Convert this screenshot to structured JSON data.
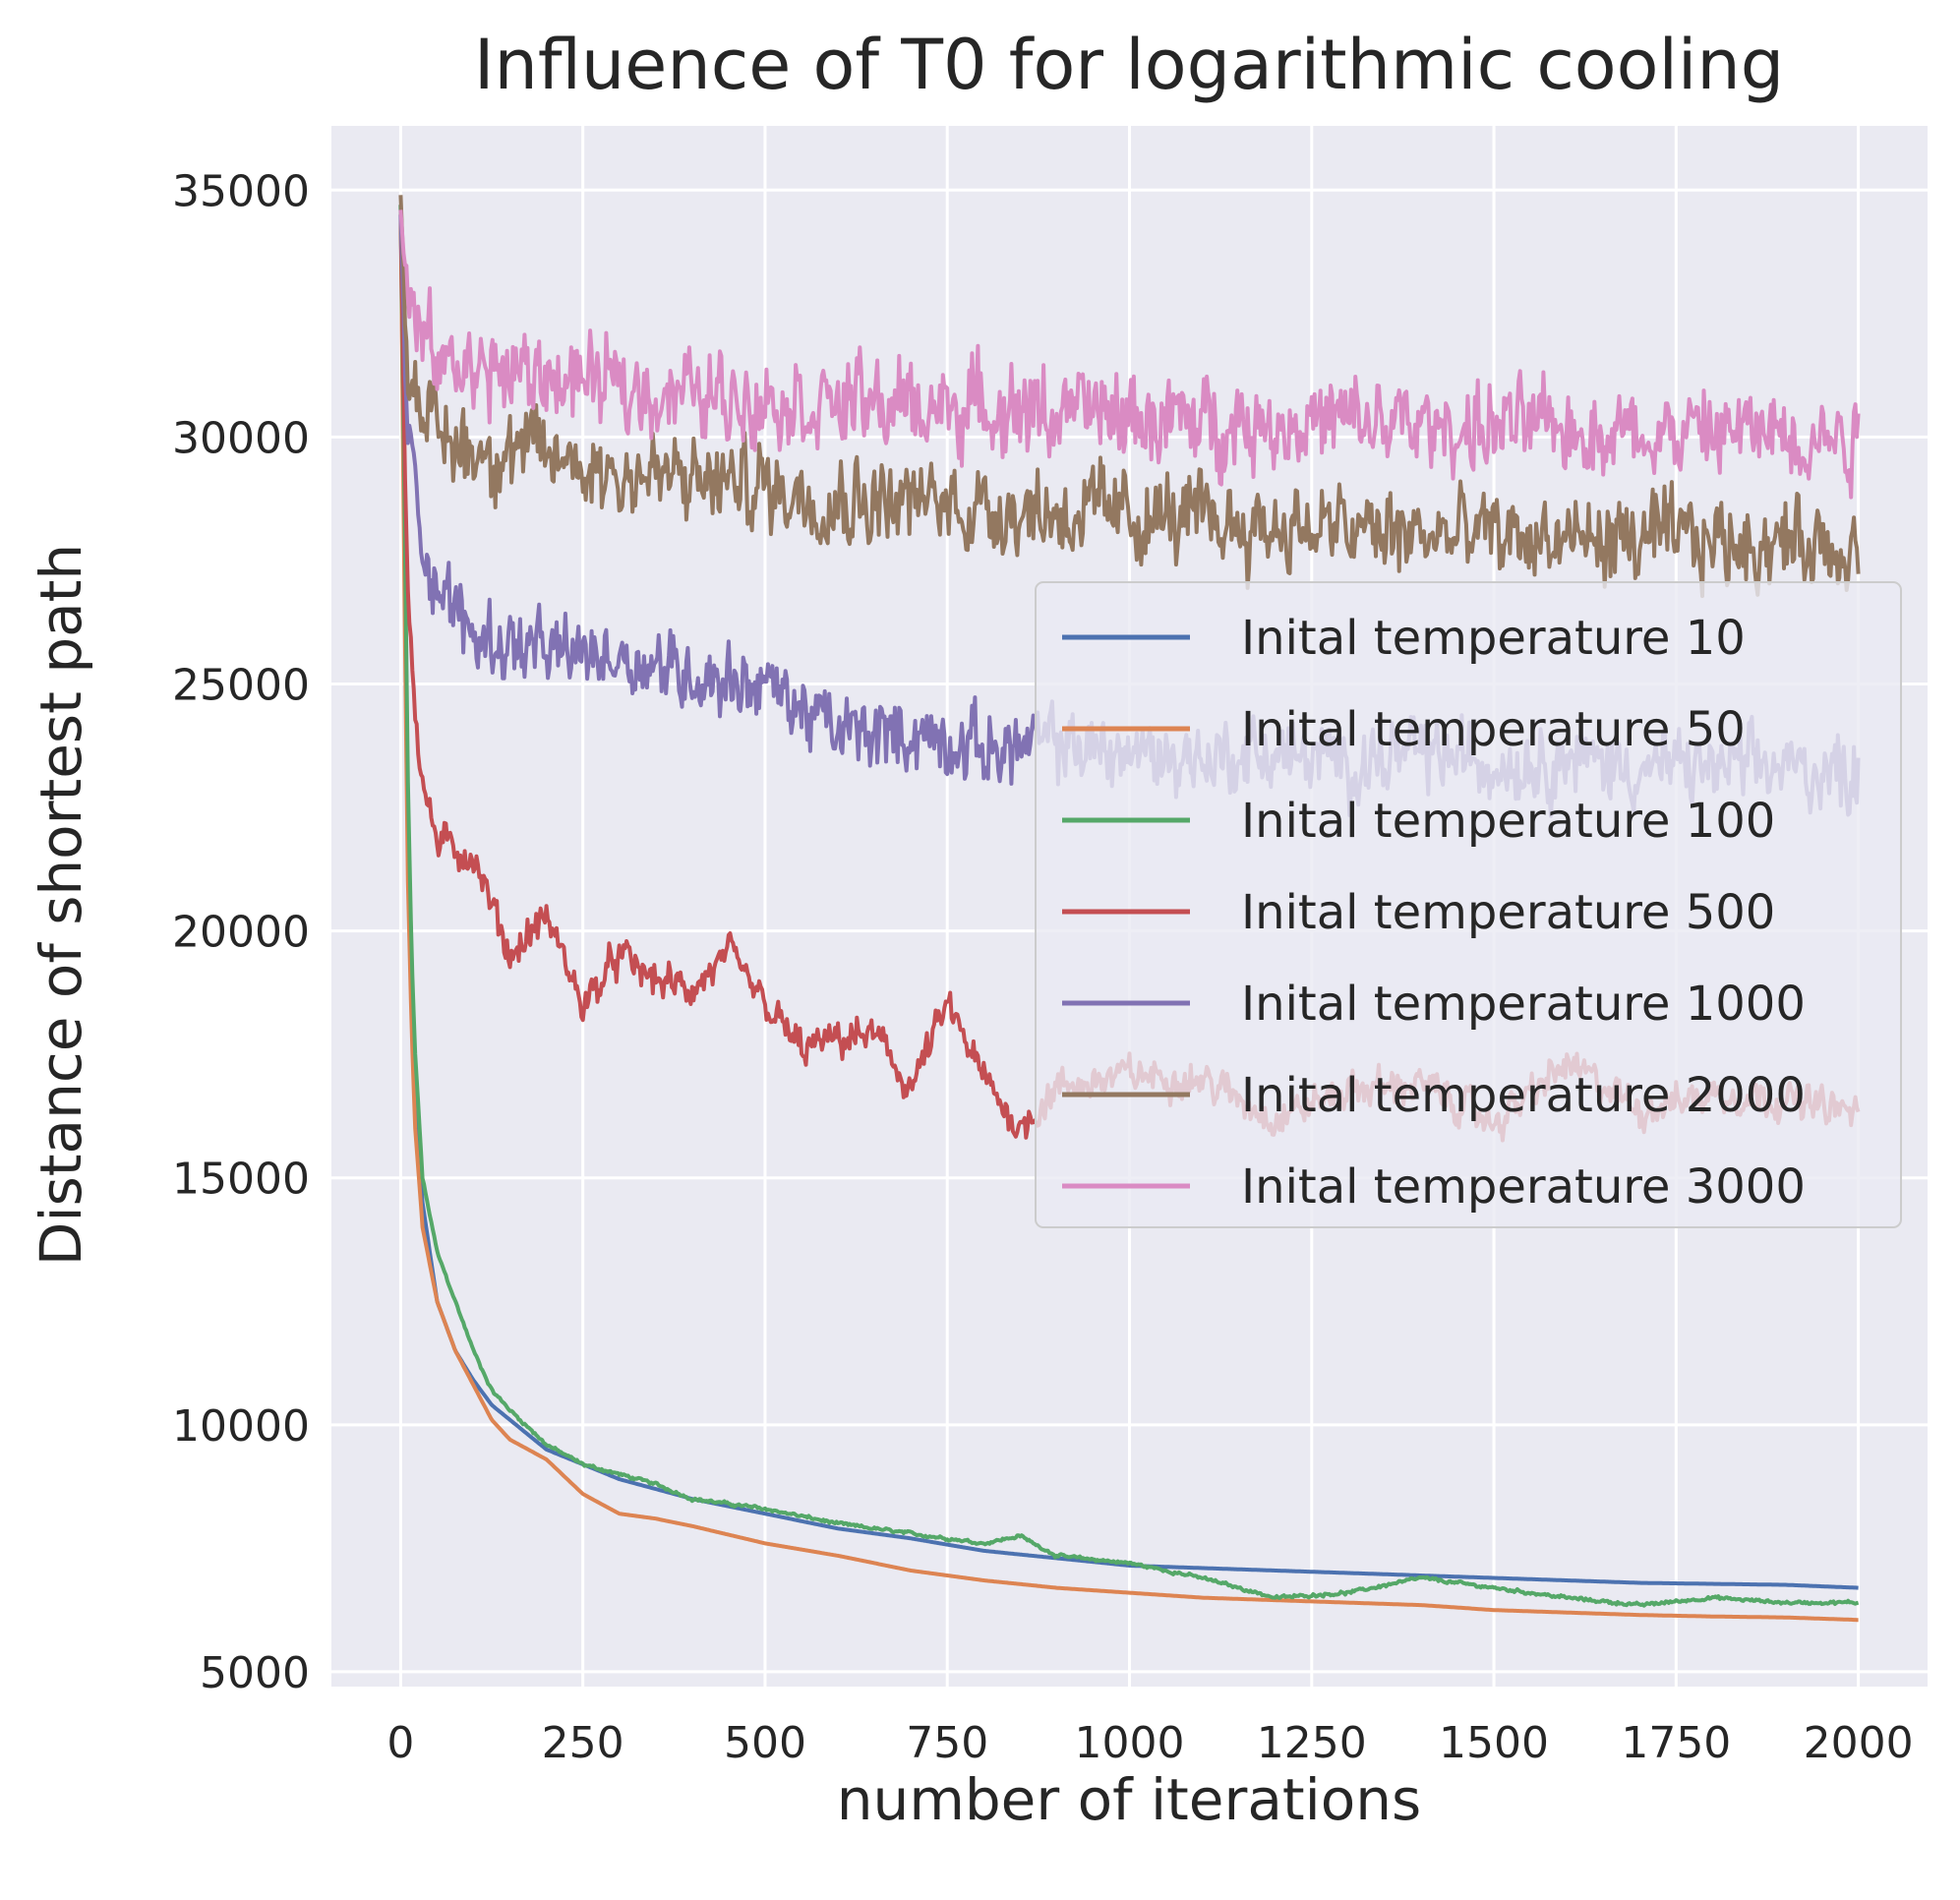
{
  "chart_data": {
    "type": "line",
    "title": "Influence of T0 for logarithmic cooling",
    "xlabel": "number of iterations",
    "ylabel": "Distance of shortest path",
    "xlim": [
      -95,
      2095
    ],
    "ylim": [
      4700,
      36300
    ],
    "grid": true,
    "legend_position": "center-right",
    "x_ticks": [
      0,
      250,
      500,
      750,
      1000,
      1250,
      1500,
      1750,
      2000
    ],
    "y_ticks": [
      5000,
      10000,
      15000,
      20000,
      25000,
      30000,
      35000
    ],
    "x_tick_labels": [
      "0",
      "250",
      "500",
      "750",
      "1000",
      "1250",
      "1500",
      "1750",
      "2000"
    ],
    "y_tick_labels": [
      "5000",
      "10000",
      "15000",
      "20000",
      "25000",
      "30000",
      "35000"
    ],
    "colors": {
      "background": "#eaeaf2",
      "grid": "#ffffff",
      "text": "#262626"
    },
    "series": [
      {
        "name": "Inital temperature 10",
        "color": "#4c72b0",
        "noise": 0,
        "points": [
          [
            0,
            34700
          ],
          [
            5,
            28000
          ],
          [
            10,
            22000
          ],
          [
            15,
            19000
          ],
          [
            20,
            16500
          ],
          [
            30,
            14500
          ],
          [
            50,
            12500
          ],
          [
            75,
            11500
          ],
          [
            100,
            10900
          ],
          [
            125,
            10400
          ],
          [
            150,
            10100
          ],
          [
            200,
            9500
          ],
          [
            250,
            9200
          ],
          [
            300,
            8900
          ],
          [
            350,
            8700
          ],
          [
            400,
            8500
          ],
          [
            500,
            8200
          ],
          [
            600,
            7900
          ],
          [
            700,
            7700
          ],
          [
            800,
            7450
          ],
          [
            900,
            7300
          ],
          [
            1000,
            7150
          ],
          [
            1100,
            7100
          ],
          [
            1200,
            7050
          ],
          [
            1300,
            7000
          ],
          [
            1400,
            6950
          ],
          [
            1500,
            6900
          ],
          [
            1600,
            6850
          ],
          [
            1700,
            6800
          ],
          [
            1800,
            6780
          ],
          [
            1900,
            6760
          ],
          [
            2000,
            6700
          ]
        ]
      },
      {
        "name": "Inital temperature 50",
        "color": "#dd8452",
        "noise": 0,
        "points": [
          [
            0,
            34700
          ],
          [
            5,
            27000
          ],
          [
            10,
            21000
          ],
          [
            15,
            18000
          ],
          [
            20,
            16000
          ],
          [
            30,
            14000
          ],
          [
            50,
            12500
          ],
          [
            75,
            11500
          ],
          [
            100,
            10800
          ],
          [
            125,
            10100
          ],
          [
            150,
            9700
          ],
          [
            200,
            9300
          ],
          [
            250,
            8600
          ],
          [
            300,
            8200
          ],
          [
            350,
            8100
          ],
          [
            400,
            7950
          ],
          [
            500,
            7600
          ],
          [
            600,
            7350
          ],
          [
            700,
            7050
          ],
          [
            800,
            6850
          ],
          [
            900,
            6700
          ],
          [
            1000,
            6600
          ],
          [
            1100,
            6500
          ],
          [
            1200,
            6450
          ],
          [
            1300,
            6400
          ],
          [
            1400,
            6350
          ],
          [
            1500,
            6250
          ],
          [
            1600,
            6200
          ],
          [
            1700,
            6150
          ],
          [
            1800,
            6120
          ],
          [
            1900,
            6100
          ],
          [
            2000,
            6050
          ]
        ]
      },
      {
        "name": "Inital temperature 100",
        "color": "#55a868",
        "noise": 40,
        "points": [
          [
            0,
            34700
          ],
          [
            5,
            29000
          ],
          [
            10,
            23000
          ],
          [
            15,
            19500
          ],
          [
            20,
            17500
          ],
          [
            30,
            15000
          ],
          [
            50,
            13500
          ],
          [
            75,
            12500
          ],
          [
            100,
            11500
          ],
          [
            125,
            10700
          ],
          [
            150,
            10300
          ],
          [
            200,
            9600
          ],
          [
            250,
            9200
          ],
          [
            300,
            9000
          ],
          [
            350,
            8800
          ],
          [
            400,
            8500
          ],
          [
            500,
            8300
          ],
          [
            600,
            8000
          ],
          [
            700,
            7800
          ],
          [
            800,
            7600
          ],
          [
            850,
            7750
          ],
          [
            900,
            7350
          ],
          [
            1000,
            7200
          ],
          [
            1100,
            6900
          ],
          [
            1200,
            6500
          ],
          [
            1300,
            6600
          ],
          [
            1400,
            6900
          ],
          [
            1500,
            6700
          ],
          [
            1600,
            6500
          ],
          [
            1700,
            6350
          ],
          [
            1800,
            6500
          ],
          [
            1900,
            6400
          ],
          [
            2000,
            6400
          ]
        ]
      },
      {
        "name": "Inital temperature 500",
        "color": "#c44e52",
        "noise": 450,
        "points": [
          [
            0,
            34500
          ],
          [
            5,
            30000
          ],
          [
            10,
            27000
          ],
          [
            20,
            24500
          ],
          [
            30,
            23000
          ],
          [
            50,
            21800
          ],
          [
            100,
            21500
          ],
          [
            150,
            19500
          ],
          [
            200,
            20300
          ],
          [
            250,
            18500
          ],
          [
            300,
            19500
          ],
          [
            350,
            19000
          ],
          [
            400,
            18800
          ],
          [
            450,
            19500
          ],
          [
            500,
            18500
          ],
          [
            550,
            17600
          ],
          [
            600,
            17800
          ],
          [
            650,
            17900
          ],
          [
            700,
            16800
          ],
          [
            750,
            18500
          ],
          [
            800,
            17000
          ],
          [
            850,
            16000
          ],
          [
            900,
            16800
          ],
          [
            1000,
            17100
          ],
          [
            1100,
            17000
          ],
          [
            1200,
            16200
          ],
          [
            1300,
            16800
          ],
          [
            1400,
            16900
          ],
          [
            1500,
            16100
          ],
          [
            1600,
            17300
          ],
          [
            1700,
            16400
          ],
          [
            1800,
            16700
          ],
          [
            1900,
            16600
          ],
          [
            2000,
            16300
          ]
        ]
      },
      {
        "name": "Inital temperature 1000",
        "color": "#8172b3",
        "noise": 900,
        "points": [
          [
            0,
            34500
          ],
          [
            5,
            32000
          ],
          [
            10,
            30000
          ],
          [
            30,
            28000
          ],
          [
            50,
            27000
          ],
          [
            100,
            26000
          ],
          [
            200,
            25600
          ],
          [
            300,
            25600
          ],
          [
            400,
            25200
          ],
          [
            500,
            25000
          ],
          [
            600,
            24000
          ],
          [
            700,
            24000
          ],
          [
            800,
            23700
          ],
          [
            900,
            23800
          ],
          [
            1000,
            23600
          ],
          [
            1100,
            23500
          ],
          [
            1200,
            23600
          ],
          [
            1300,
            23400
          ],
          [
            1400,
            23600
          ],
          [
            1500,
            23400
          ],
          [
            1600,
            23500
          ],
          [
            1700,
            23300
          ],
          [
            1800,
            23300
          ],
          [
            1900,
            23300
          ],
          [
            2000,
            23200
          ]
        ]
      },
      {
        "name": "Inital temperature 2000",
        "color": "#937860",
        "noise": 1100,
        "points": [
          [
            0,
            34900
          ],
          [
            5,
            33000
          ],
          [
            10,
            31500
          ],
          [
            50,
            30000
          ],
          [
            100,
            29800
          ],
          [
            200,
            29600
          ],
          [
            300,
            29300
          ],
          [
            400,
            29100
          ],
          [
            500,
            29000
          ],
          [
            600,
            28800
          ],
          [
            700,
            28700
          ],
          [
            800,
            28600
          ],
          [
            900,
            28500
          ],
          [
            1000,
            28400
          ],
          [
            1100,
            28300
          ],
          [
            1200,
            28200
          ],
          [
            1300,
            28100
          ],
          [
            1400,
            28000
          ],
          [
            1500,
            28000
          ],
          [
            1600,
            27900
          ],
          [
            1700,
            27900
          ],
          [
            1800,
            27900
          ],
          [
            1900,
            27900
          ],
          [
            2000,
            27800
          ]
        ]
      },
      {
        "name": "Inital temperature 3000",
        "color": "#da8bc3",
        "noise": 1100,
        "points": [
          [
            0,
            34600
          ],
          [
            5,
            33500
          ],
          [
            10,
            32500
          ],
          [
            50,
            31500
          ],
          [
            100,
            31400
          ],
          [
            200,
            31200
          ],
          [
            300,
            31000
          ],
          [
            400,
            30900
          ],
          [
            500,
            30800
          ],
          [
            600,
            30700
          ],
          [
            700,
            30600
          ],
          [
            800,
            30600
          ],
          [
            900,
            30500
          ],
          [
            1000,
            30400
          ],
          [
            1100,
            30300
          ],
          [
            1200,
            30300
          ],
          [
            1300,
            30300
          ],
          [
            1400,
            30200
          ],
          [
            1500,
            30200
          ],
          [
            1600,
            30200
          ],
          [
            1700,
            30100
          ],
          [
            1800,
            30100
          ],
          [
            1900,
            30100
          ],
          [
            2000,
            30000
          ]
        ]
      }
    ]
  }
}
